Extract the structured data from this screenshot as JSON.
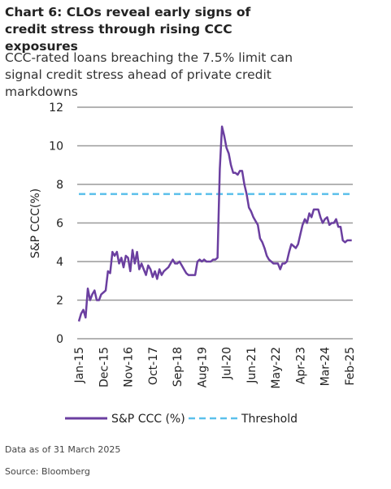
{
  "chart_data": {
    "type": "line",
    "title": "Chart 6: CLOs reveal early signs of credit stress through rising CCC exposures",
    "subtitle": "CCC-rated loans breaching the 7.5% limit can signal credit stress ahead of private credit markdowns",
    "y_label": "S&P CCC(%)",
    "categories": [
      "Jan-15",
      null,
      null,
      null,
      null,
      null,
      null,
      null,
      null,
      null,
      null,
      "Dec-15",
      null,
      null,
      null,
      null,
      null,
      null,
      null,
      null,
      null,
      null,
      "Nov-16",
      null,
      null,
      null,
      null,
      null,
      null,
      null,
      null,
      null,
      null,
      "Oct-17",
      null,
      null,
      null,
      null,
      null,
      null,
      null,
      null,
      null,
      null,
      "Sep-18",
      null,
      null,
      null,
      null,
      null,
      null,
      null,
      null,
      null,
      null,
      "Aug-19",
      null,
      null,
      null,
      null,
      null,
      null,
      null,
      null,
      null,
      null,
      "Jul-20",
      null,
      null,
      null,
      null,
      null,
      null,
      null,
      null,
      null,
      null,
      "Jun-21",
      null,
      null,
      null,
      null,
      null,
      null,
      null,
      null,
      null,
      null,
      "May-22",
      null,
      null,
      null,
      null,
      null,
      null,
      null,
      null,
      null,
      null,
      "Apr-23",
      null,
      null,
      null,
      null,
      null,
      null,
      null,
      null,
      null,
      null,
      "Mar-24",
      null,
      null,
      null,
      null,
      null,
      null,
      null,
      null,
      null,
      null,
      "Feb-25",
      null
    ],
    "series": [
      {
        "name": "S&P CCC (%)",
        "color": "#6b3fa0",
        "values": [
          0.9,
          1.3,
          1.5,
          1.1,
          2.6,
          2.0,
          2.3,
          2.5,
          2.0,
          2.0,
          2.3,
          2.4,
          2.5,
          3.5,
          3.4,
          4.5,
          4.3,
          4.5,
          3.9,
          4.2,
          3.7,
          4.3,
          4.2,
          3.5,
          4.6,
          3.9,
          4.5,
          3.6,
          3.9,
          3.6,
          3.3,
          3.8,
          3.6,
          3.2,
          3.5,
          3.1,
          3.6,
          3.3,
          3.5,
          3.6,
          3.7,
          3.9,
          4.1,
          3.9,
          3.9,
          4.0,
          3.8,
          3.6,
          3.4,
          3.3,
          3.3,
          3.3,
          3.3,
          4.0,
          4.1,
          4.0,
          4.1,
          4.0,
          4.0,
          4.0,
          4.1,
          4.1,
          4.2,
          8.8,
          11.0,
          10.5,
          9.9,
          9.6,
          9.0,
          8.6,
          8.6,
          8.5,
          8.7,
          8.7,
          8.0,
          7.5,
          6.8,
          6.6,
          6.3,
          6.1,
          5.9,
          5.2,
          5.0,
          4.7,
          4.3,
          4.1,
          4.0,
          3.9,
          3.9,
          3.9,
          3.6,
          3.9,
          3.9,
          4.0,
          4.5,
          4.9,
          4.8,
          4.7,
          4.9,
          5.4,
          5.9,
          6.2,
          6.0,
          6.5,
          6.3,
          6.7,
          6.7,
          6.7,
          6.3,
          6.0,
          6.2,
          6.3,
          5.9,
          6.0,
          6.0,
          6.2,
          5.8,
          5.8,
          5.1,
          5.0,
          5.1,
          5.1,
          5.1
        ]
      }
    ],
    "reference_lines": [
      {
        "name": "Threshold",
        "value": 7.5,
        "color": "#5bc0eb"
      }
    ],
    "ylim": [
      0,
      12
    ],
    "yticks": [
      0,
      2,
      4,
      6,
      8,
      10,
      12
    ],
    "grid": true,
    "notes": [
      "Data as of 31 March 2025",
      "Source: Bloomberg"
    ]
  }
}
